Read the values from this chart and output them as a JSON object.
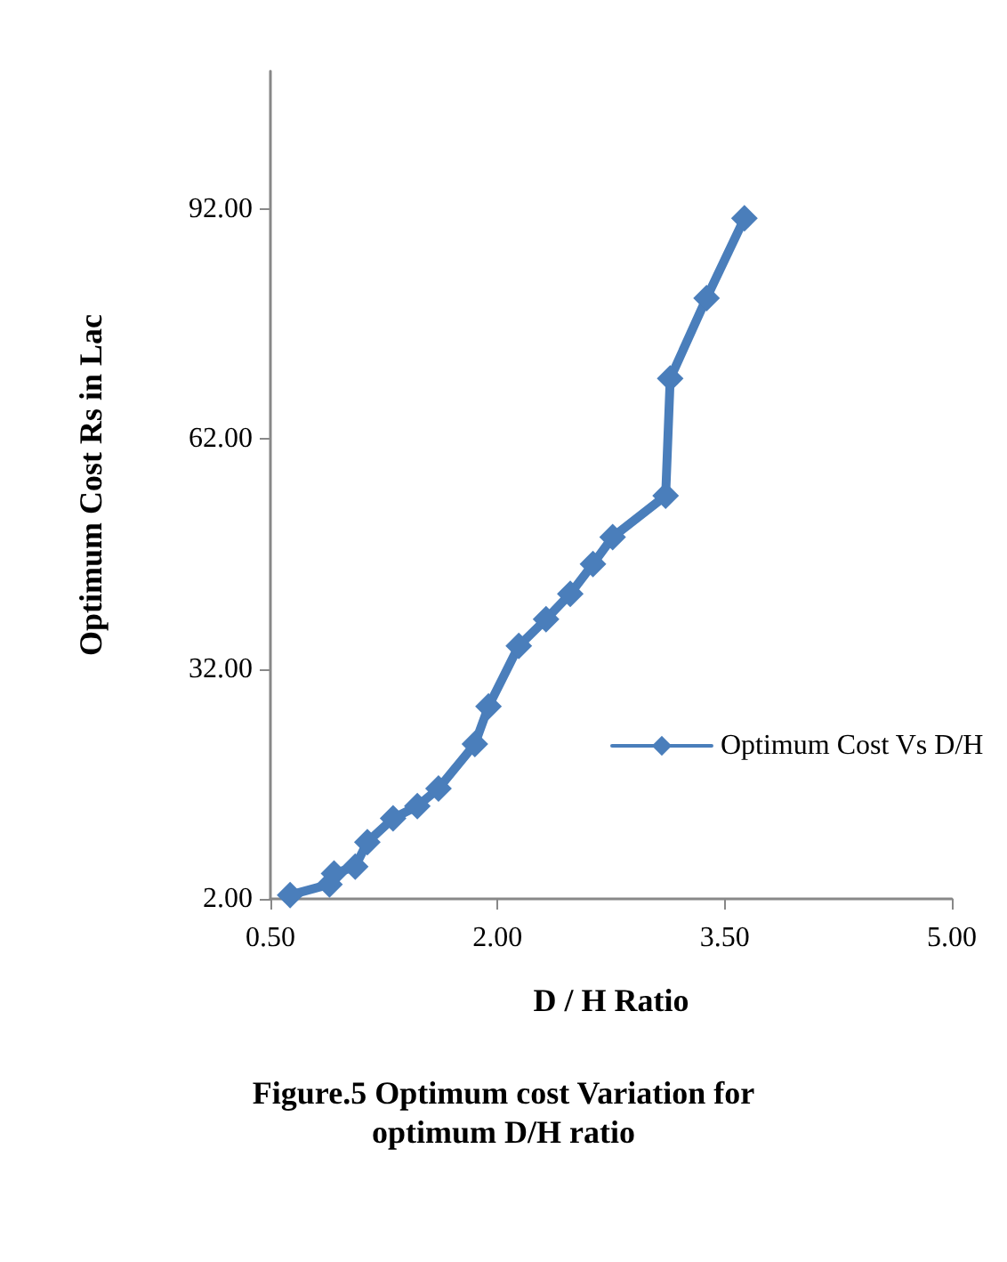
{
  "chart_data": {
    "type": "line",
    "title": "Figure.5 Optimum cost Variation for\noptimum D/H ratio",
    "xlabel": "D / H Ratio",
    "ylabel": "Optimum Cost Rs in Lac",
    "x": [
      0.63,
      0.89,
      0.92,
      1.06,
      1.14,
      1.31,
      1.47,
      1.61,
      1.85,
      1.94,
      2.14,
      2.32,
      2.48,
      2.63,
      2.76,
      3.11,
      3.14,
      3.38,
      3.63
    ],
    "series": [
      {
        "name": "Optimum Cost Vs D/H",
        "color": "#4a7ebb",
        "values": [
          2.5,
          3.9,
          5.3,
          6.2,
          9.4,
          12.5,
          14.1,
          16.4,
          22.2,
          27.1,
          35.0,
          38.5,
          41.8,
          45.7,
          49.2,
          54.6,
          69.9,
          80.4,
          90.8
        ]
      }
    ],
    "xlim": [
      0.5,
      5.0
    ],
    "xticks": [
      {
        "value": 0.5,
        "label": "0.50"
      },
      {
        "value": 2,
        "label": "2.00"
      },
      {
        "value": 3.5,
        "label": "3.50"
      },
      {
        "value": 5,
        "label": "5.00"
      }
    ],
    "ylim": [
      2,
      110
    ],
    "yticks": [
      {
        "value": 2,
        "label": "2.00"
      },
      {
        "value": 32,
        "label": "32.00"
      },
      {
        "value": 62,
        "label": "62.00"
      },
      {
        "value": 92,
        "label": "92.00"
      }
    ],
    "grid": false,
    "legend": "right",
    "marker": "diamond",
    "line_style": "solid"
  }
}
